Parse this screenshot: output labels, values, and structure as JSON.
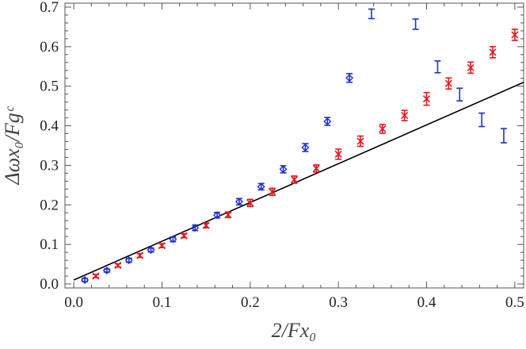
{
  "chart_data": {
    "type": "scatter",
    "title": "",
    "xlabel": "2/Fx₀",
    "ylabel": "Δωx₀/Fgᶜ",
    "xlim": [
      -0.01,
      0.51
    ],
    "ylim": [
      -0.01,
      0.71
    ],
    "xticks": [
      "0.0",
      "0.1",
      "0.2",
      "0.3",
      "0.4",
      "0.5"
    ],
    "yticks": [
      "0.0",
      "0.1",
      "0.2",
      "0.3",
      "0.4",
      "0.5",
      "0.6",
      "0.7"
    ],
    "grid": false,
    "legend": "none",
    "reference_line": {
      "x": [
        0.0,
        0.51
      ],
      "y": [
        0.01,
        0.51
      ],
      "color": "#000000"
    },
    "series": [
      {
        "color": "#1f2fd0",
        "marker": "diamond",
        "points": [
          {
            "x": 0.0125,
            "y": 0.01,
            "e": 0.004
          },
          {
            "x": 0.0375,
            "y": 0.034,
            "e": 0.004
          },
          {
            "x": 0.0625,
            "y": 0.06,
            "e": 0.005
          },
          {
            "x": 0.0875,
            "y": 0.086,
            "e": 0.005
          },
          {
            "x": 0.1125,
            "y": 0.113,
            "e": 0.006
          },
          {
            "x": 0.1375,
            "y": 0.142,
            "e": 0.007
          },
          {
            "x": 0.1625,
            "y": 0.174,
            "e": 0.007
          },
          {
            "x": 0.1875,
            "y": 0.208,
            "e": 0.008
          },
          {
            "x": 0.2125,
            "y": 0.246,
            "e": 0.008
          },
          {
            "x": 0.2375,
            "y": 0.29,
            "e": 0.009
          },
          {
            "x": 0.2625,
            "y": 0.345,
            "e": 0.01
          },
          {
            "x": 0.2875,
            "y": 0.411,
            "e": 0.01
          },
          {
            "x": 0.3125,
            "y": 0.521,
            "e": 0.011
          }
        ]
      },
      {
        "color": "#1f2fd0",
        "marker": "none",
        "points": [
          {
            "x": 0.3375,
            "y": 0.683,
            "e": 0.012
          },
          {
            "x": 0.3875,
            "y": 0.657,
            "e": 0.013
          },
          {
            "x": 0.4125,
            "y": 0.549,
            "e": 0.015
          },
          {
            "x": 0.4375,
            "y": 0.479,
            "e": 0.016
          },
          {
            "x": 0.4625,
            "y": 0.415,
            "e": 0.017
          },
          {
            "x": 0.4875,
            "y": 0.375,
            "e": 0.018
          }
        ]
      },
      {
        "color": "#e0181e",
        "marker": "x",
        "points": [
          {
            "x": 0.025,
            "y": 0.02,
            "e": 0.004
          },
          {
            "x": 0.05,
            "y": 0.047,
            "e": 0.004
          },
          {
            "x": 0.075,
            "y": 0.072,
            "e": 0.005
          },
          {
            "x": 0.1,
            "y": 0.097,
            "e": 0.005
          },
          {
            "x": 0.125,
            "y": 0.122,
            "e": 0.005
          },
          {
            "x": 0.15,
            "y": 0.148,
            "e": 0.006
          },
          {
            "x": 0.175,
            "y": 0.175,
            "e": 0.007
          },
          {
            "x": 0.2,
            "y": 0.205,
            "e": 0.009
          },
          {
            "x": 0.225,
            "y": 0.233,
            "e": 0.009
          },
          {
            "x": 0.25,
            "y": 0.264,
            "e": 0.009
          },
          {
            "x": 0.275,
            "y": 0.292,
            "e": 0.009
          },
          {
            "x": 0.3,
            "y": 0.328,
            "e": 0.013
          },
          {
            "x": 0.325,
            "y": 0.361,
            "e": 0.013
          },
          {
            "x": 0.35,
            "y": 0.392,
            "e": 0.011
          },
          {
            "x": 0.375,
            "y": 0.426,
            "e": 0.013
          },
          {
            "x": 0.4,
            "y": 0.468,
            "e": 0.016
          },
          {
            "x": 0.425,
            "y": 0.507,
            "e": 0.014
          },
          {
            "x": 0.45,
            "y": 0.547,
            "e": 0.014
          },
          {
            "x": 0.475,
            "y": 0.586,
            "e": 0.014
          },
          {
            "x": 0.5,
            "y": 0.63,
            "e": 0.014
          }
        ]
      }
    ]
  }
}
